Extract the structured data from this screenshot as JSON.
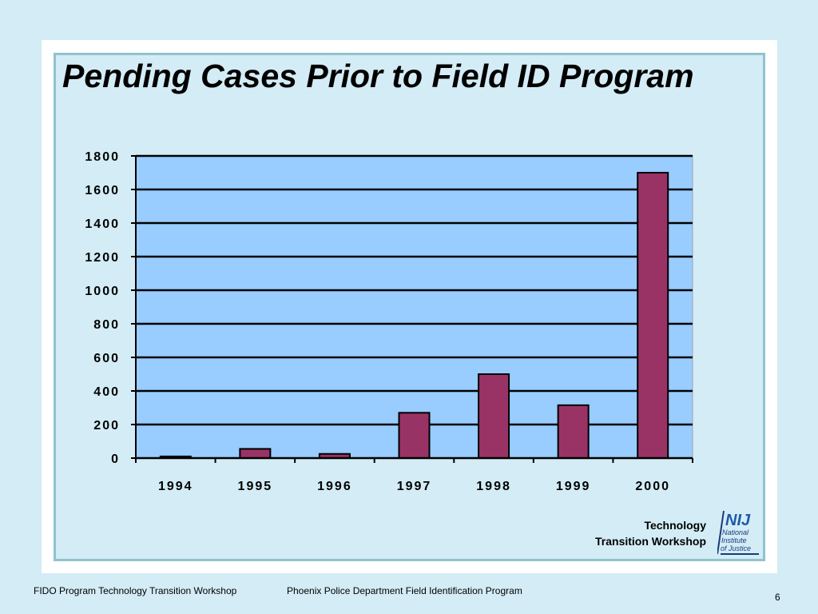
{
  "slide": {
    "title": "Pending Cases Prior to Field ID Program",
    "branding_line1": "Technology",
    "branding_line2": "Transition Workshop",
    "logo_text": "NIJ",
    "logo_subtext_1": "National",
    "logo_subtext_2": "Institute",
    "logo_subtext_3": "of Justice",
    "footer_left": "FIDO Program Technology Transition Workshop",
    "footer_center": "Phoenix Police Department Field Identification Program",
    "page_number": "6"
  },
  "colors": {
    "background": "#d3ecf5",
    "plot_area": "#99ccff",
    "bar_fill": "#993366",
    "frame_border": "#8fc3cf"
  },
  "chart_data": {
    "type": "bar",
    "categories": [
      "1994",
      "1995",
      "1996",
      "1997",
      "1998",
      "1999",
      "2000"
    ],
    "values": [
      10,
      55,
      25,
      270,
      500,
      315,
      1700
    ],
    "ylim": [
      0,
      1800
    ],
    "yticks": [
      "0",
      "200",
      "400",
      "600",
      "800",
      "1000",
      "1200",
      "1400",
      "1600",
      "1800"
    ],
    "grid": true,
    "legend": "none"
  }
}
